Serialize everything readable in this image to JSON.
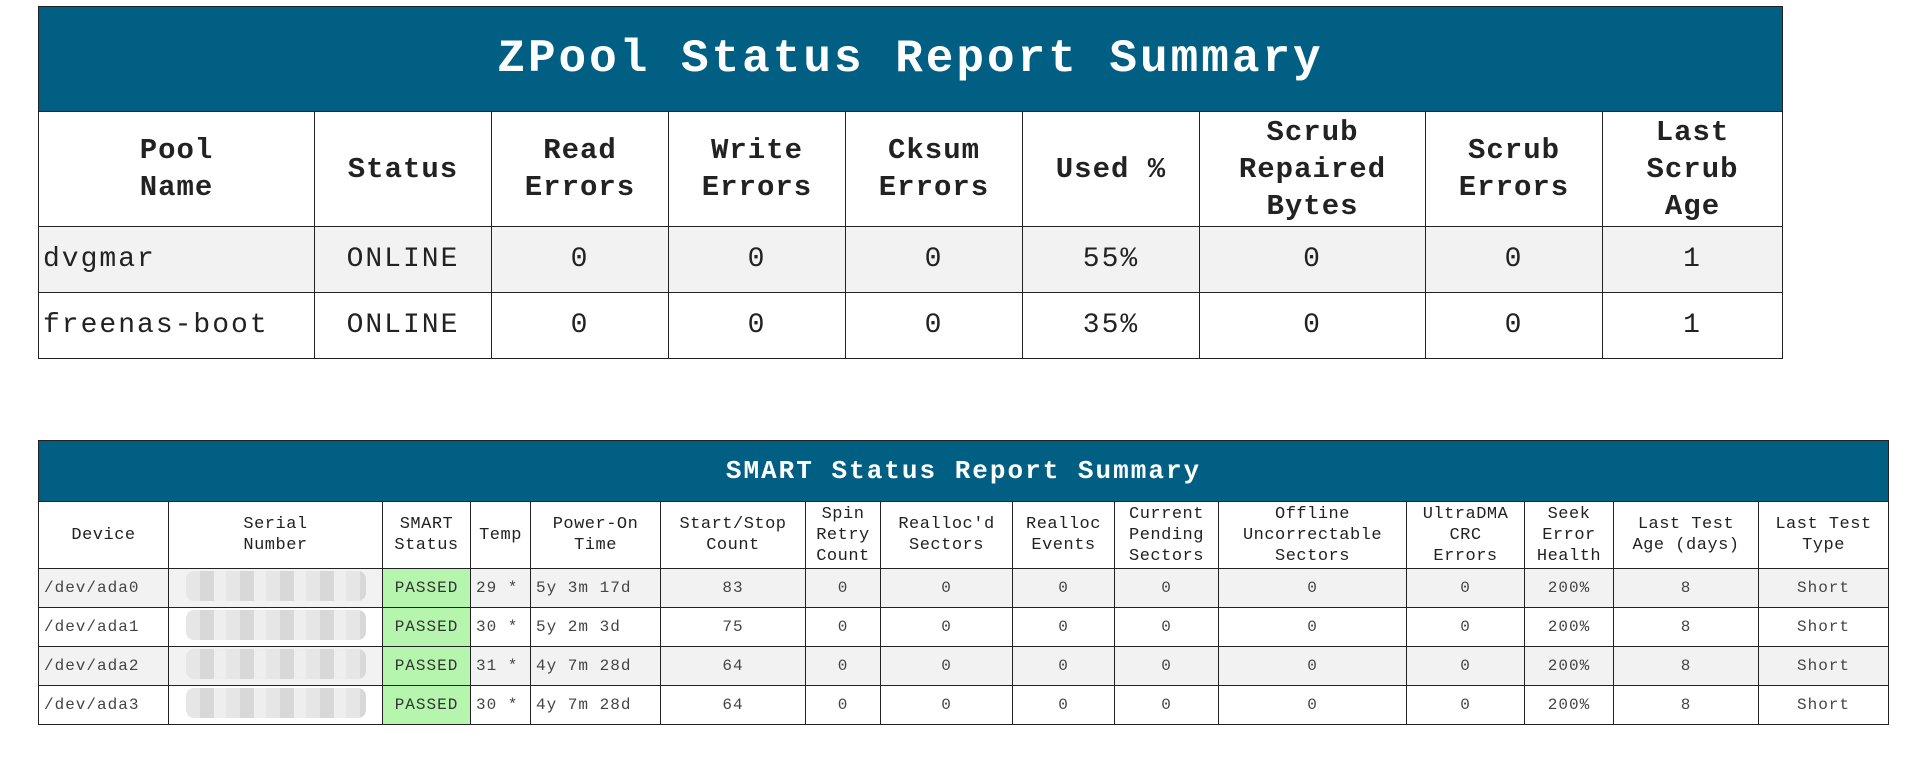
{
  "zpool": {
    "title": "ZPool Status Report Summary",
    "headers": [
      [
        "Pool",
        "Name"
      ],
      [
        "Status"
      ],
      [
        "Read",
        "Errors"
      ],
      [
        "Write",
        "Errors"
      ],
      [
        "Cksum",
        "Errors"
      ],
      [
        "Used %"
      ],
      [
        "Scrub",
        "Repaired",
        "Bytes"
      ],
      [
        "Scrub",
        "Errors"
      ],
      [
        "Last",
        "Scrub",
        "Age"
      ]
    ],
    "rows": [
      [
        "dvgmar",
        "ONLINE",
        "0",
        "0",
        "0",
        "55%",
        "0",
        "0",
        "1"
      ],
      [
        "freenas-boot",
        "ONLINE",
        "0",
        "0",
        "0",
        "35%",
        "0",
        "0",
        "1"
      ]
    ]
  },
  "smart": {
    "title": "SMART Status Report Summary",
    "headers": [
      [
        "Device"
      ],
      [
        "Serial",
        "Number"
      ],
      [
        "SMART",
        "Status"
      ],
      [
        "Temp"
      ],
      [
        "Power-On",
        "Time"
      ],
      [
        "Start/Stop",
        "Count"
      ],
      [
        "Spin",
        "Retry",
        "Count"
      ],
      [
        "Realloc'd",
        "Sectors"
      ],
      [
        "Realloc",
        "Events"
      ],
      [
        "Current",
        "Pending",
        "Sectors"
      ],
      [
        "Offline",
        "Uncorrectable",
        "Sectors"
      ],
      [
        "UltraDMA",
        "CRC",
        "Errors"
      ],
      [
        "Seek",
        "Error",
        "Health"
      ],
      [
        "Last Test",
        "Age (days)"
      ],
      [
        "Last Test",
        "Type"
      ]
    ],
    "rows": [
      [
        "/dev/ada0",
        "",
        "PASSED",
        "29 *",
        "5y 3m 17d",
        "83",
        "0",
        "0",
        "0",
        "0",
        "0",
        "0",
        "200%",
        "8",
        "Short"
      ],
      [
        "/dev/ada1",
        "",
        "PASSED",
        "30 *",
        "5y 2m 3d",
        "75",
        "0",
        "0",
        "0",
        "0",
        "0",
        "0",
        "200%",
        "8",
        "Short"
      ],
      [
        "/dev/ada2",
        "",
        "PASSED",
        "31 *",
        "4y 7m 28d",
        "64",
        "0",
        "0",
        "0",
        "0",
        "0",
        "0",
        "200%",
        "8",
        "Short"
      ],
      [
        "/dev/ada3",
        "",
        "PASSED",
        "30 *",
        "4y 7m 28d",
        "64",
        "0",
        "0",
        "0",
        "0",
        "0",
        "0",
        "200%",
        "8",
        "Short"
      ]
    ]
  },
  "colors": {
    "header_bg": "#005f83",
    "passed_bg": "#b6f5ae",
    "row_alt_bg": "#f2f2f2"
  }
}
